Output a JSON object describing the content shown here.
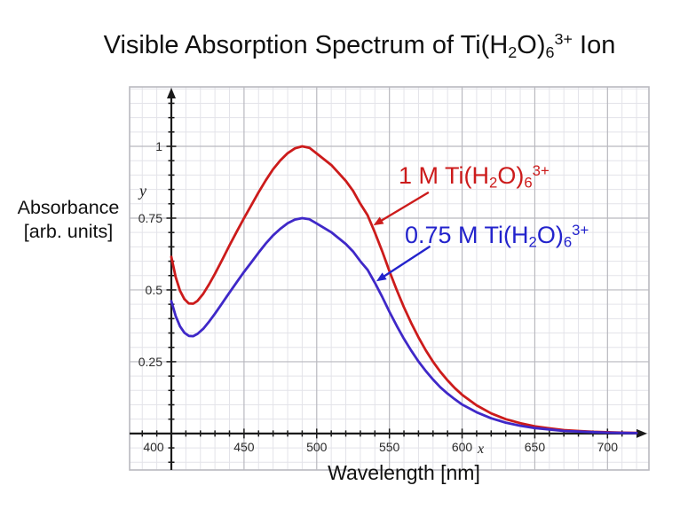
{
  "title": {
    "plain": "Visible Absorption Spectrum of Ti(H2O)6 3+ Ion",
    "parts": [
      {
        "t": "Visible Absorption Spectrum of Ti(H"
      },
      {
        "t": "2",
        "s": "sub"
      },
      {
        "t": "O)"
      },
      {
        "t": "6",
        "s": "sub"
      },
      {
        "t": "3+",
        "s": "sup"
      },
      {
        "t": " Ion"
      }
    ]
  },
  "y_axis_label": {
    "line1": "Absorbance",
    "line2": "[arb. units]"
  },
  "x_axis_label": "Wavelength [nm]",
  "axis_letters": {
    "x": "x",
    "y": "y"
  },
  "legend": [
    {
      "id": "red",
      "color": "#cc1b1b",
      "plain": "1 M Ti(H2O)6 3+",
      "parts": [
        {
          "t": "1 M Ti(H"
        },
        {
          "t": "2",
          "s": "sub"
        },
        {
          "t": "O)"
        },
        {
          "t": "6",
          "s": "sub"
        },
        {
          "t": "3+",
          "s": "sup"
        }
      ]
    },
    {
      "id": "blue",
      "color": "#2323cc",
      "plain": "0.75 M Ti(H2O)6 3+",
      "parts": [
        {
          "t": "0.75 M Ti(H"
        },
        {
          "t": "2",
          "s": "sub"
        },
        {
          "t": "O)"
        },
        {
          "t": "6",
          "s": "sub"
        },
        {
          "t": "3+",
          "s": "sup"
        }
      ]
    }
  ],
  "chart_data": {
    "type": "line",
    "title": "Visible Absorption Spectrum of Ti(H2O)6 3+ Ion",
    "xlabel": "Wavelength [nm]",
    "ylabel": "Absorbance [arb. units]",
    "xlim": [
      371.3,
      728.5
    ],
    "ylim": [
      -0.127,
      1.207
    ],
    "grid": {
      "on": true,
      "minor_x_step": 10,
      "minor_y_step": 0.05,
      "minor_color": "#e3e3e9",
      "major_color": "#b9b9bf"
    },
    "axis_color": "#1a1a1a",
    "x_axis_position_y": 0,
    "y_axis_position_x": 400,
    "x_ticks": {
      "minor_step": 10,
      "major": [
        {
          "v": 400,
          "label": "400",
          "dx": -20
        },
        {
          "v": 450,
          "label": "450",
          "dx": 0
        },
        {
          "v": 500,
          "label": "500",
          "dx": 0
        },
        {
          "v": 550,
          "label": "550",
          "dx": 0
        },
        {
          "v": 600,
          "label": "600",
          "dx": 0
        },
        {
          "v": 650,
          "label": "650",
          "dx": 0
        },
        {
          "v": 700,
          "label": "700",
          "dx": 0
        }
      ]
    },
    "y_ticks": {
      "minor_step": 0.05,
      "major": [
        {
          "v": 1,
          "label": "1"
        },
        {
          "v": 0.75,
          "label": "0.75"
        },
        {
          "v": 0.5,
          "label": "0.5"
        },
        {
          "v": 0.25,
          "label": "0.25"
        }
      ]
    },
    "x": [
      400,
      403,
      406,
      409,
      412,
      415,
      418,
      422,
      426,
      430,
      435,
      440,
      445,
      450,
      455,
      460,
      465,
      470,
      475,
      480,
      485,
      490,
      495,
      500,
      510,
      520,
      525,
      530,
      535,
      540,
      545,
      550,
      555,
      560,
      565,
      570,
      575,
      580,
      585,
      590,
      595,
      600,
      610,
      620,
      630,
      640,
      650,
      660,
      670,
      680,
      690,
      700,
      710,
      720
    ],
    "series": [
      {
        "name": "1 M Ti(H2O)6 3+",
        "color": "#cc1b1b",
        "values": [
          0.615,
          0.545,
          0.497,
          0.468,
          0.453,
          0.452,
          0.462,
          0.487,
          0.52,
          0.556,
          0.605,
          0.655,
          0.703,
          0.75,
          0.795,
          0.84,
          0.882,
          0.92,
          0.951,
          0.976,
          0.993,
          1.0,
          0.995,
          0.975,
          0.935,
          0.88,
          0.845,
          0.8,
          0.76,
          0.7,
          0.635,
          0.565,
          0.5,
          0.44,
          0.385,
          0.335,
          0.29,
          0.25,
          0.215,
          0.185,
          0.158,
          0.135,
          0.098,
          0.07,
          0.05,
          0.036,
          0.025,
          0.018,
          0.012,
          0.009,
          0.006,
          0.0045,
          0.003,
          0.002
        ]
      },
      {
        "name": "0.75 M Ti(H2O)6 3+",
        "color": "#3f28c8",
        "values": [
          0.461,
          0.409,
          0.373,
          0.351,
          0.34,
          0.339,
          0.347,
          0.365,
          0.39,
          0.417,
          0.454,
          0.491,
          0.527,
          0.563,
          0.596,
          0.63,
          0.662,
          0.69,
          0.713,
          0.732,
          0.745,
          0.75,
          0.746,
          0.731,
          0.701,
          0.66,
          0.634,
          0.6,
          0.57,
          0.525,
          0.476,
          0.424,
          0.375,
          0.33,
          0.289,
          0.251,
          0.218,
          0.188,
          0.161,
          0.139,
          0.119,
          0.101,
          0.074,
          0.053,
          0.038,
          0.027,
          0.019,
          0.014,
          0.009,
          0.007,
          0.005,
          0.003,
          0.002,
          0.0015
        ]
      }
    ],
    "annotations": [
      {
        "target": "1 M curve",
        "color": "#cc1b1b",
        "from": {
          "x": 577,
          "y": 0.84
        },
        "to": {
          "x": 539,
          "y": 0.725
        }
      },
      {
        "target": "0.75 M curve",
        "color": "#2323cc",
        "from": {
          "x": 578,
          "y": 0.652
        },
        "to": {
          "x": 541,
          "y": 0.53
        }
      }
    ],
    "legend_position": "inside-right",
    "x_arrow": true,
    "y_arrow": true
  }
}
